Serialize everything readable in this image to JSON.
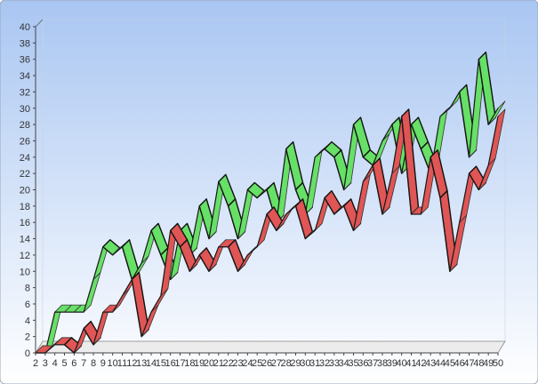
{
  "chart_data": {
    "type": "line",
    "title": "",
    "xlabel": "",
    "ylabel": "",
    "categories": [
      "2",
      "3",
      "4",
      "5",
      "6",
      "7",
      "8",
      "9",
      "10",
      "11",
      "12",
      "13",
      "14",
      "15",
      "16",
      "17",
      "18",
      "19",
      "20",
      "21",
      "22",
      "23",
      "24",
      "25",
      "26",
      "27",
      "28",
      "29",
      "30",
      "31",
      "32",
      "33",
      "34",
      "35",
      "36",
      "37",
      "38",
      "39",
      "40",
      "41",
      "42",
      "43",
      "44",
      "45",
      "46",
      "47",
      "48",
      "49",
      "50"
    ],
    "ylim": [
      0,
      40
    ],
    "yticks": [
      0,
      2,
      4,
      6,
      8,
      10,
      12,
      14,
      16,
      18,
      20,
      22,
      24,
      26,
      28,
      30,
      32,
      34,
      36,
      38,
      40
    ],
    "grid": false,
    "legend": "none",
    "series": [
      {
        "color": "#66e066",
        "values": [
          0,
          0,
          5,
          5,
          5,
          5,
          9,
          13,
          12,
          13,
          9,
          11,
          15,
          12,
          9,
          15,
          12,
          18,
          14,
          21,
          18,
          14,
          20,
          19,
          20,
          16,
          25,
          20,
          17,
          24,
          25,
          24,
          20,
          28,
          24,
          23,
          26,
          28,
          22,
          28,
          25,
          22,
          29,
          30,
          32,
          24,
          36,
          28,
          30
        ]
      },
      {
        "color": "#e05555",
        "values": [
          0,
          0,
          1,
          1,
          0,
          3,
          1,
          5,
          5,
          7,
          9,
          2,
          5,
          7,
          15,
          13,
          10,
          12,
          10,
          13,
          13,
          10,
          12,
          13,
          17,
          15,
          17,
          18,
          14,
          15,
          19,
          17,
          18,
          15,
          21,
          23,
          17,
          22,
          29,
          17,
          17,
          24,
          19,
          10,
          16,
          22,
          20,
          23,
          29
        ]
      }
    ]
  }
}
